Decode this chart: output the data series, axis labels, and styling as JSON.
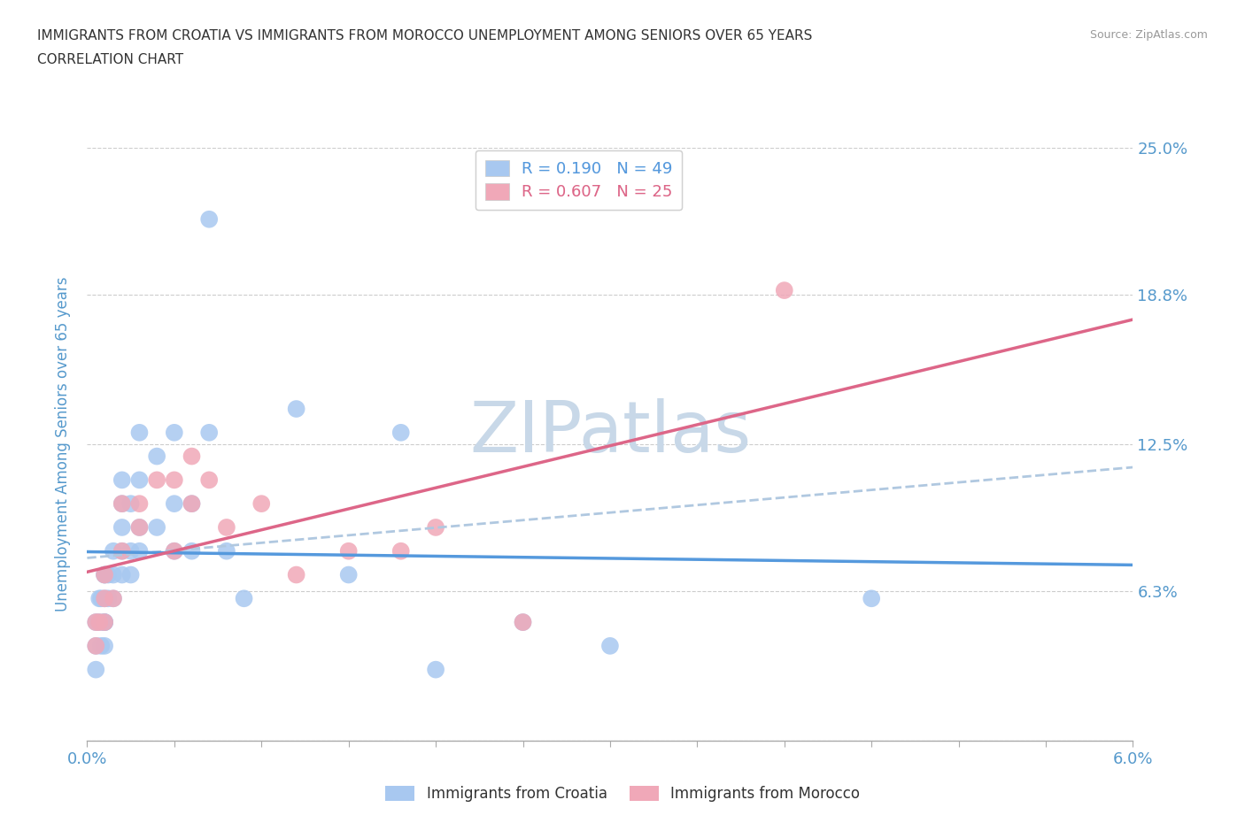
{
  "title_line1": "IMMIGRANTS FROM CROATIA VS IMMIGRANTS FROM MOROCCO UNEMPLOYMENT AMONG SENIORS OVER 65 YEARS",
  "title_line2": "CORRELATION CHART",
  "source": "Source: ZipAtlas.com",
  "ylabel": "Unemployment Among Seniors over 65 years",
  "xlim": [
    0.0,
    0.06
  ],
  "ylim": [
    0.0,
    0.25
  ],
  "xticks": [
    0.0,
    0.005,
    0.01,
    0.015,
    0.02,
    0.025,
    0.03,
    0.035,
    0.04,
    0.045,
    0.05,
    0.055,
    0.06
  ],
  "xtick_labels_show": [
    "0.0%",
    "6.0%"
  ],
  "ytick_labels_right": [
    "",
    "6.3%",
    "12.5%",
    "18.8%",
    "25.0%"
  ],
  "yticks_right": [
    0.0,
    0.063,
    0.125,
    0.188,
    0.25
  ],
  "color_croatia": "#a8c8f0",
  "color_morocco": "#f0a8b8",
  "color_blue_line": "#5599dd",
  "color_pink_line": "#dd6688",
  "color_dashed": "#b0c8e0",
  "R_croatia": 0.19,
  "N_croatia": 49,
  "R_morocco": 0.607,
  "N_morocco": 25,
  "watermark": "ZIPatlas",
  "watermark_color": "#c8d8e8",
  "croatia_x": [
    0.0005,
    0.0005,
    0.0005,
    0.0007,
    0.0007,
    0.0008,
    0.0008,
    0.001,
    0.001,
    0.001,
    0.001,
    0.001,
    0.001,
    0.001,
    0.0012,
    0.0012,
    0.0015,
    0.0015,
    0.0015,
    0.002,
    0.002,
    0.002,
    0.002,
    0.002,
    0.0025,
    0.0025,
    0.0025,
    0.003,
    0.003,
    0.003,
    0.003,
    0.004,
    0.004,
    0.005,
    0.005,
    0.005,
    0.006,
    0.006,
    0.007,
    0.007,
    0.008,
    0.009,
    0.012,
    0.015,
    0.018,
    0.02,
    0.025,
    0.03,
    0.045
  ],
  "croatia_y": [
    0.03,
    0.04,
    0.05,
    0.05,
    0.06,
    0.04,
    0.06,
    0.04,
    0.05,
    0.06,
    0.07,
    0.07,
    0.05,
    0.05,
    0.06,
    0.07,
    0.06,
    0.07,
    0.08,
    0.07,
    0.08,
    0.09,
    0.1,
    0.11,
    0.07,
    0.08,
    0.1,
    0.08,
    0.09,
    0.11,
    0.13,
    0.09,
    0.12,
    0.1,
    0.08,
    0.13,
    0.08,
    0.1,
    0.22,
    0.13,
    0.08,
    0.06,
    0.14,
    0.07,
    0.13,
    0.03,
    0.05,
    0.04,
    0.06
  ],
  "morocco_x": [
    0.0005,
    0.0005,
    0.0007,
    0.001,
    0.001,
    0.001,
    0.0015,
    0.002,
    0.002,
    0.003,
    0.003,
    0.004,
    0.005,
    0.005,
    0.006,
    0.006,
    0.007,
    0.008,
    0.01,
    0.012,
    0.015,
    0.018,
    0.02,
    0.025,
    0.04
  ],
  "morocco_y": [
    0.04,
    0.05,
    0.05,
    0.06,
    0.07,
    0.05,
    0.06,
    0.08,
    0.1,
    0.09,
    0.1,
    0.11,
    0.11,
    0.08,
    0.1,
    0.12,
    0.11,
    0.09,
    0.1,
    0.07,
    0.08,
    0.08,
    0.09,
    0.05,
    0.19
  ],
  "grid_color": "#cccccc",
  "title_color": "#333333",
  "axis_label_color": "#5599cc",
  "tick_label_color": "#5599cc"
}
